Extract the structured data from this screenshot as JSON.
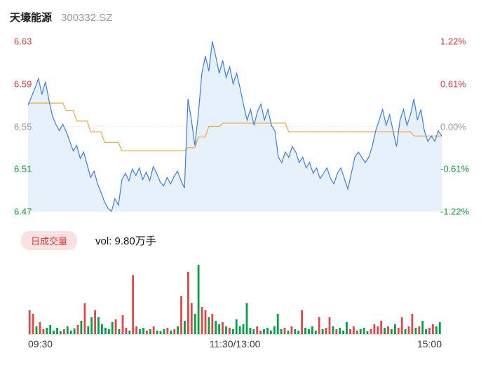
{
  "header": {
    "title": "天壕能源",
    "code": "300332.SZ"
  },
  "colors": {
    "up": "#e6393d",
    "down": "#0fa036",
    "flat": "#999999",
    "price_line": "#3b7cf0",
    "avg_line": "#f0a83a",
    "area_fill": "#e7f1fc",
    "vol_up": "#e64545",
    "vol_down": "#00a244",
    "badge_bg": "#fbe2e2",
    "zero_line": "#ececec",
    "baseline": "#e4e4e4"
  },
  "main_chart": {
    "left_labels": [
      {
        "text": "6.63",
        "tone": "up"
      },
      {
        "text": "6.59",
        "tone": "up"
      },
      {
        "text": "6.55",
        "tone": "flat"
      },
      {
        "text": "6.51",
        "tone": "down"
      },
      {
        "text": "6.47",
        "tone": "down"
      }
    ],
    "right_labels": [
      {
        "text": "1.22%",
        "tone": "up"
      },
      {
        "text": "0.61%",
        "tone": "up"
      },
      {
        "text": "0.00%",
        "tone": "flat"
      },
      {
        "text": "-0.61%",
        "tone": "down"
      },
      {
        "text": "-1.22%",
        "tone": "down"
      }
    ]
  },
  "legend": {
    "badge": "日成交量",
    "vol_text": "vol: 9.80万手"
  },
  "chart_data": {
    "type": "line",
    "title": "天壕能源 300332.SZ",
    "x_axis_labels": [
      "09:30",
      "11:30/13:00",
      "15:00"
    ],
    "y_axis_price_ticks": [
      6.63,
      6.59,
      6.55,
      6.51,
      6.47
    ],
    "y_axis_percent_ticks": [
      "1.22%",
      "0.61%",
      "0.00%",
      "-0.61%",
      "-1.22%"
    ],
    "price_range": [
      6.47,
      6.63
    ],
    "prev_close": 6.55,
    "total_volume": "9.80万手",
    "grid": false,
    "legend_position": "between-panels",
    "series": [
      {
        "name": "price",
        "values": [
          6.57,
          6.578,
          6.586,
          6.595,
          6.58,
          6.592,
          6.575,
          6.56,
          6.552,
          6.546,
          6.552,
          6.545,
          6.536,
          6.527,
          6.532,
          6.52,
          6.526,
          6.514,
          6.502,
          6.508,
          6.496,
          6.488,
          6.479,
          6.473,
          6.47,
          6.482,
          6.476,
          6.5,
          6.506,
          6.499,
          6.51,
          6.504,
          6.511,
          6.5,
          6.507,
          6.499,
          6.512,
          6.506,
          6.498,
          6.494,
          6.502,
          6.496,
          6.503,
          6.508,
          6.499,
          6.492,
          6.576,
          6.556,
          6.532,
          6.562,
          6.6,
          6.616,
          6.602,
          6.63,
          6.616,
          6.6,
          6.612,
          6.596,
          6.606,
          6.59,
          6.6,
          6.586,
          6.57,
          6.556,
          6.566,
          6.551,
          6.564,
          6.571,
          6.556,
          6.566,
          6.551,
          6.546,
          6.521,
          6.516,
          6.526,
          6.521,
          6.531,
          6.526,
          6.516,
          6.521,
          6.511,
          6.516,
          6.506,
          6.511,
          6.501,
          6.506,
          6.511,
          6.501,
          6.496,
          6.506,
          6.511,
          6.501,
          6.491,
          6.506,
          6.521,
          6.526,
          6.521,
          6.516,
          6.521,
          6.531,
          6.546,
          6.556,
          6.566,
          6.551,
          6.561,
          6.546,
          6.531,
          6.556,
          6.566,
          6.551,
          6.561,
          6.576,
          6.556,
          6.566,
          6.546,
          6.536,
          6.541,
          6.536,
          6.546,
          6.541
        ]
      },
      {
        "name": "average",
        "values": [
          6.572,
          6.572,
          6.572,
          6.572,
          6.572,
          6.572,
          6.572,
          6.572,
          6.572,
          6.572,
          6.572,
          6.565,
          6.565,
          6.565,
          6.555,
          6.555,
          6.555,
          6.555,
          6.545,
          6.545,
          6.545,
          6.545,
          6.535,
          6.535,
          6.535,
          6.535,
          6.535,
          6.527,
          6.527,
          6.527,
          6.527,
          6.527,
          6.527,
          6.527,
          6.527,
          6.527,
          6.527,
          6.527,
          6.527,
          6.527,
          6.527,
          6.527,
          6.527,
          6.527,
          6.527,
          6.527,
          6.53,
          6.53,
          6.53,
          6.54,
          6.54,
          6.54,
          6.55,
          6.55,
          6.55,
          6.55,
          6.553,
          6.553,
          6.553,
          6.553,
          6.553,
          6.553,
          6.553,
          6.553,
          6.553,
          6.553,
          6.553,
          6.553,
          6.553,
          6.553,
          6.553,
          6.553,
          6.553,
          6.553,
          6.553,
          6.545,
          6.545,
          6.545,
          6.545,
          6.545,
          6.545,
          6.545,
          6.545,
          6.545,
          6.545,
          6.545,
          6.545,
          6.545,
          6.545,
          6.545,
          6.545,
          6.545,
          6.545,
          6.545,
          6.545,
          6.545,
          6.545,
          6.545,
          6.545,
          6.545,
          6.545,
          6.545,
          6.545,
          6.545,
          6.545,
          6.545,
          6.545,
          6.545,
          6.545,
          6.545,
          6.545,
          6.541,
          6.541,
          6.541,
          6.541,
          6.541,
          6.541,
          6.541,
          6.541,
          6.541
        ]
      },
      {
        "name": "volume",
        "values": [
          35,
          30,
          12,
          18,
          8,
          10,
          14,
          6,
          10,
          5,
          8,
          12,
          6,
          9,
          14,
          20,
          45,
          12,
          25,
          35,
          25,
          15,
          10,
          8,
          18,
          22,
          8,
          28,
          10,
          6,
          85,
          12,
          8,
          10,
          6,
          8,
          12,
          6,
          5,
          8,
          10,
          6,
          8,
          12,
          55,
          20,
          90,
          45,
          30,
          100,
          40,
          35,
          25,
          30,
          20,
          15,
          18,
          12,
          10,
          8,
          22,
          12,
          15,
          45,
          10,
          8,
          12,
          6,
          8,
          10,
          6,
          12,
          30,
          8,
          10,
          6,
          12,
          8,
          6,
          35,
          10,
          8,
          12,
          6,
          25,
          8,
          10,
          25,
          12,
          8,
          10,
          6,
          18,
          8,
          12,
          6,
          8,
          10,
          5,
          8,
          15,
          12,
          20,
          10,
          12,
          8,
          15,
          10,
          25,
          8,
          12,
          30,
          10,
          12,
          20,
          8,
          10,
          15,
          12,
          18
        ],
        "colors": "rrgrrgggggrgggrgrggrgggggrgrrgrrggrgrgggrgrgrgrrggrrgrggrgrgggggggrrggggggrgrggrggggrgrrgrgggrrrgggrrrrgrggrrgrrgrggrrgg"
      }
    ]
  }
}
